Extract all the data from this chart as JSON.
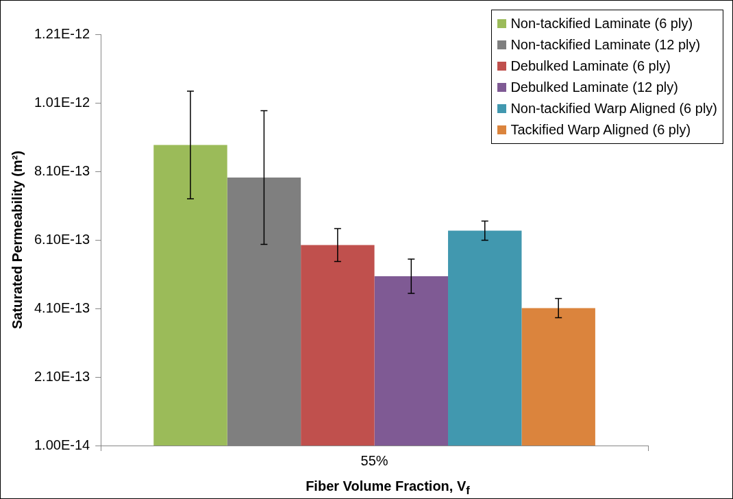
{
  "chart_data": {
    "type": "bar",
    "xlabel": "Fiber Volume Fraction, V$_{f}$",
    "ylabel": "Saturated Permeability (m²)",
    "categories": [
      "55%"
    ],
    "series": [
      {
        "name": "Non-tackified Laminate (6 ply)",
        "color": "#9bbb59",
        "values": [
          8.87e-13
        ],
        "errors": [
          1.57e-13
        ]
      },
      {
        "name": "Non-tackified Laminate (12 ply)",
        "color": "#7f7f7f",
        "values": [
          7.92e-13
        ],
        "errors": [
          1.95e-13
        ]
      },
      {
        "name": "Debulked Laminate (6 ply)",
        "color": "#c0504d",
        "values": [
          5.95e-13
        ],
        "errors": [
          4.8e-14
        ]
      },
      {
        "name": "Debulked Laminate (12 ply)",
        "color": "#7f5a94",
        "values": [
          5.04e-13
        ],
        "errors": [
          5e-14
        ]
      },
      {
        "name": "Non-tackified Warp Aligned (6 ply)",
        "color": "#4198af",
        "values": [
          6.37e-13
        ],
        "errors": [
          2.8e-14
        ]
      },
      {
        "name": "Tackified Warp Aligned (6 ply)",
        "color": "#db843d",
        "values": [
          4.11e-13
        ],
        "errors": [
          2.8e-14
        ]
      }
    ],
    "ylim": [
      1e-14,
      1.21e-12
    ],
    "yticks": [
      {
        "value": 1e-14,
        "label": "1.00E-14"
      },
      {
        "value": 2.1e-13,
        "label": "2.10E-13"
      },
      {
        "value": 4.1e-13,
        "label": "4.10E-13"
      },
      {
        "value": 6.1e-13,
        "label": "6.10E-13"
      },
      {
        "value": 8.1e-13,
        "label": "8.10E-13"
      },
      {
        "value": 1.01e-12,
        "label": "1.01E-12"
      },
      {
        "value": 1.21e-12,
        "label": "1.21E-12"
      }
    ],
    "grid": false,
    "legend": "top right"
  }
}
